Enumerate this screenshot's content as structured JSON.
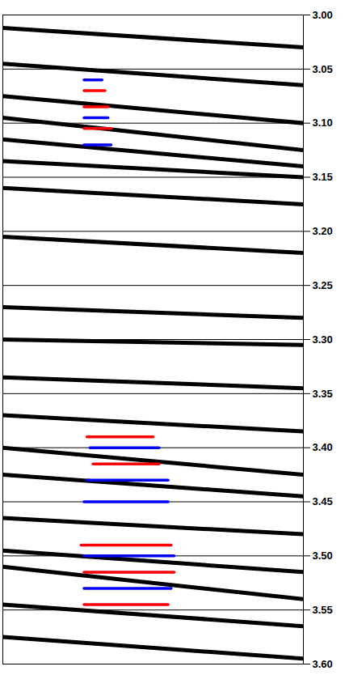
{
  "chart_data": {
    "type": "seismic",
    "xlim": [
      0,
      1
    ],
    "ylim": [
      3.0,
      3.6
    ],
    "yticks": [
      {
        "value": 3.0,
        "label": "3.00"
      },
      {
        "value": 3.05,
        "label": "3.05"
      },
      {
        "value": 3.1,
        "label": "3.10"
      },
      {
        "value": 3.15,
        "label": "3.15"
      },
      {
        "value": 3.2,
        "label": "3.20"
      },
      {
        "value": 3.25,
        "label": "3.25"
      },
      {
        "value": 3.3,
        "label": "3.30"
      },
      {
        "value": 3.35,
        "label": "3.35"
      },
      {
        "value": 3.4,
        "label": "3.40"
      },
      {
        "value": 3.45,
        "label": "3.45"
      },
      {
        "value": 3.5,
        "label": "3.50"
      },
      {
        "value": 3.55,
        "label": "3.55"
      },
      {
        "value": 3.6,
        "label": "3.60"
      }
    ],
    "grid": true,
    "tick_labels": "y",
    "series": [
      {
        "color": "#000000",
        "x": [
          0,
          1
        ],
        "values": [
          3.012,
          3.03
        ]
      },
      {
        "color": "#000000",
        "x": [
          0,
          1
        ],
        "values": [
          3.045,
          3.065
        ]
      },
      {
        "color": "#000000",
        "x": [
          0,
          1
        ],
        "values": [
          3.075,
          3.1
        ]
      },
      {
        "color": "#000000",
        "x": [
          0,
          1
        ],
        "values": [
          3.095,
          3.125
        ]
      },
      {
        "color": "#000000",
        "x": [
          0,
          1
        ],
        "values": [
          3.115,
          3.14
        ]
      },
      {
        "color": "#000000",
        "x": [
          0,
          1
        ],
        "values": [
          3.135,
          3.15
        ]
      },
      {
        "color": "#000000",
        "x": [
          0,
          1
        ],
        "values": [
          3.16,
          3.175
        ]
      },
      {
        "color": "#000000",
        "x": [
          0,
          1
        ],
        "values": [
          3.205,
          3.22
        ]
      },
      {
        "color": "#000000",
        "x": [
          0,
          1
        ],
        "values": [
          3.27,
          3.28
        ]
      },
      {
        "color": "#000000",
        "x": [
          0,
          1
        ],
        "values": [
          3.3,
          3.305
        ]
      },
      {
        "color": "#000000",
        "x": [
          0,
          1
        ],
        "values": [
          3.335,
          3.345
        ]
      },
      {
        "color": "#000000",
        "x": [
          0,
          1
        ],
        "values": [
          3.37,
          3.385
        ]
      },
      {
        "color": "#000000",
        "x": [
          0,
          1
        ],
        "values": [
          3.4,
          3.425
        ]
      },
      {
        "color": "#000000",
        "x": [
          0,
          1
        ],
        "values": [
          3.425,
          3.445
        ]
      },
      {
        "color": "#000000",
        "x": [
          0,
          1
        ],
        "values": [
          3.465,
          3.48
        ]
      },
      {
        "color": "#000000",
        "x": [
          0,
          1
        ],
        "values": [
          3.495,
          3.515
        ]
      },
      {
        "color": "#000000",
        "x": [
          0,
          1
        ],
        "values": [
          3.51,
          3.54
        ]
      },
      {
        "color": "#000000",
        "x": [
          0,
          1
        ],
        "values": [
          3.545,
          3.565
        ]
      },
      {
        "color": "#000000",
        "x": [
          0,
          1
        ],
        "values": [
          3.575,
          3.595
        ]
      },
      {
        "color": "#ff0000",
        "x": [
          0.27,
          0.34
        ],
        "values": [
          3.07,
          3.07
        ]
      },
      {
        "color": "#ff0000",
        "x": [
          0.27,
          0.35
        ],
        "values": [
          3.085,
          3.085
        ]
      },
      {
        "color": "#ff0000",
        "x": [
          0.27,
          0.36
        ],
        "values": [
          3.105,
          3.105
        ]
      },
      {
        "color": "#ff0000",
        "x": [
          0.28,
          0.5
        ],
        "values": [
          3.39,
          3.39
        ]
      },
      {
        "color": "#ff0000",
        "x": [
          0.3,
          0.52
        ],
        "values": [
          3.415,
          3.415
        ]
      },
      {
        "color": "#ff0000",
        "x": [
          0.26,
          0.56
        ],
        "values": [
          3.49,
          3.49
        ]
      },
      {
        "color": "#ff0000",
        "x": [
          0.27,
          0.57
        ],
        "values": [
          3.515,
          3.515
        ]
      },
      {
        "color": "#ff0000",
        "x": [
          0.27,
          0.55
        ],
        "values": [
          3.545,
          3.545
        ]
      },
      {
        "color": "#0000ff",
        "x": [
          0.27,
          0.33
        ],
        "values": [
          3.06,
          3.06
        ]
      },
      {
        "color": "#0000ff",
        "x": [
          0.27,
          0.35
        ],
        "values": [
          3.095,
          3.095
        ]
      },
      {
        "color": "#0000ff",
        "x": [
          0.27,
          0.36
        ],
        "values": [
          3.12,
          3.12
        ]
      },
      {
        "color": "#0000ff",
        "x": [
          0.29,
          0.52
        ],
        "values": [
          3.4,
          3.4
        ]
      },
      {
        "color": "#0000ff",
        "x": [
          0.28,
          0.55
        ],
        "values": [
          3.43,
          3.43
        ]
      },
      {
        "color": "#0000ff",
        "x": [
          0.27,
          0.55
        ],
        "values": [
          3.45,
          3.45
        ]
      },
      {
        "color": "#0000ff",
        "x": [
          0.27,
          0.57
        ],
        "values": [
          3.5,
          3.5
        ]
      },
      {
        "color": "#0000ff",
        "x": [
          0.27,
          0.56
        ],
        "values": [
          3.53,
          3.53
        ]
      }
    ]
  }
}
